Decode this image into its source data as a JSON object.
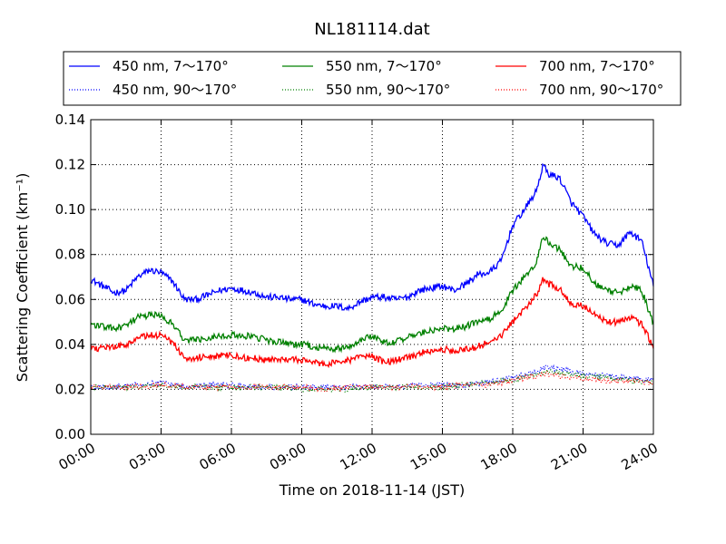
{
  "chart_data": {
    "type": "line",
    "title": "NL181114.dat",
    "xlabel": "Time on 2018-11-14 (JST)",
    "ylabel": "Scattering Coefficient (km⁻¹)",
    "xlim": [
      0,
      24
    ],
    "ylim": [
      0.0,
      0.14
    ],
    "xticks": [
      0,
      3,
      6,
      9,
      12,
      15,
      18,
      21,
      24
    ],
    "xtick_labels": [
      "00:00",
      "03:00",
      "06:00",
      "09:00",
      "12:00",
      "15:00",
      "18:00",
      "21:00",
      "24:00"
    ],
    "yticks": [
      0.0,
      0.02,
      0.04,
      0.06,
      0.08,
      0.1,
      0.12,
      0.14
    ],
    "ytick_labels": [
      "0.00",
      "0.02",
      "0.04",
      "0.06",
      "0.08",
      "0.10",
      "0.12",
      "0.14"
    ],
    "grid": true,
    "legend_position": "top",
    "series": [
      {
        "name": "450 nm, 7～170°",
        "color": "#0000ff",
        "style": "solid",
        "x": [
          0,
          0.5,
          1,
          1.5,
          2,
          2.5,
          3,
          3.5,
          4,
          4.5,
          5,
          5.5,
          6,
          6.5,
          7,
          7.5,
          8,
          8.5,
          9,
          9.5,
          10,
          10.5,
          11,
          11.5,
          12,
          12.5,
          13,
          13.5,
          14,
          14.5,
          15,
          15.5,
          16,
          16.5,
          17,
          17.5,
          18,
          18.5,
          19,
          19.3,
          19.5,
          20,
          20.5,
          21,
          21.5,
          22,
          22.5,
          23,
          23.5,
          24
        ],
        "y": [
          0.069,
          0.066,
          0.063,
          0.064,
          0.07,
          0.073,
          0.072,
          0.068,
          0.06,
          0.06,
          0.062,
          0.064,
          0.065,
          0.064,
          0.063,
          0.061,
          0.061,
          0.06,
          0.06,
          0.058,
          0.057,
          0.057,
          0.056,
          0.059,
          0.061,
          0.061,
          0.06,
          0.061,
          0.064,
          0.065,
          0.066,
          0.064,
          0.067,
          0.071,
          0.072,
          0.077,
          0.093,
          0.1,
          0.108,
          0.12,
          0.116,
          0.114,
          0.103,
          0.097,
          0.089,
          0.085,
          0.084,
          0.09,
          0.086,
          0.066
        ]
      },
      {
        "name": "550 nm, 7～170°",
        "color": "#008000",
        "style": "solid",
        "x": [
          0,
          0.5,
          1,
          1.5,
          2,
          2.5,
          3,
          3.5,
          4,
          4.5,
          5,
          5.5,
          6,
          6.5,
          7,
          7.5,
          8,
          8.5,
          9,
          9.5,
          10,
          10.5,
          11,
          11.5,
          12,
          12.5,
          13,
          13.5,
          14,
          14.5,
          15,
          15.5,
          16,
          16.5,
          17,
          17.5,
          18,
          18.5,
          19,
          19.3,
          19.5,
          20,
          20.5,
          21,
          21.5,
          22,
          22.5,
          23,
          23.5,
          24
        ],
        "y": [
          0.049,
          0.048,
          0.047,
          0.048,
          0.052,
          0.053,
          0.053,
          0.049,
          0.042,
          0.042,
          0.043,
          0.044,
          0.044,
          0.044,
          0.043,
          0.042,
          0.041,
          0.04,
          0.04,
          0.039,
          0.038,
          0.038,
          0.039,
          0.042,
          0.044,
          0.041,
          0.041,
          0.043,
          0.045,
          0.046,
          0.047,
          0.047,
          0.048,
          0.05,
          0.051,
          0.055,
          0.064,
          0.07,
          0.076,
          0.088,
          0.086,
          0.082,
          0.075,
          0.074,
          0.067,
          0.064,
          0.063,
          0.066,
          0.064,
          0.049
        ]
      },
      {
        "name": "700 nm, 7～170°",
        "color": "#ff0000",
        "style": "solid",
        "x": [
          0,
          0.5,
          1,
          1.5,
          2,
          2.5,
          3,
          3.5,
          4,
          4.5,
          5,
          5.5,
          6,
          6.5,
          7,
          7.5,
          8,
          8.5,
          9,
          9.5,
          10,
          10.5,
          11,
          11.5,
          12,
          12.5,
          13,
          13.5,
          14,
          14.5,
          15,
          15.5,
          16,
          16.5,
          17,
          17.5,
          18,
          18.5,
          19,
          19.3,
          19.5,
          20,
          20.5,
          21,
          21.5,
          22,
          22.5,
          23,
          23.5,
          24
        ],
        "y": [
          0.039,
          0.038,
          0.039,
          0.04,
          0.043,
          0.044,
          0.044,
          0.041,
          0.034,
          0.034,
          0.035,
          0.035,
          0.035,
          0.034,
          0.034,
          0.033,
          0.033,
          0.033,
          0.033,
          0.032,
          0.031,
          0.032,
          0.033,
          0.034,
          0.035,
          0.032,
          0.033,
          0.034,
          0.036,
          0.037,
          0.038,
          0.037,
          0.038,
          0.039,
          0.041,
          0.044,
          0.05,
          0.056,
          0.062,
          0.069,
          0.067,
          0.065,
          0.058,
          0.057,
          0.053,
          0.05,
          0.05,
          0.052,
          0.049,
          0.039
        ]
      },
      {
        "name": "450 nm, 90～170°",
        "color": "#0000ff",
        "style": "dotted",
        "x": [
          0,
          1,
          2,
          3,
          4,
          5,
          6,
          7,
          8,
          9,
          10,
          11,
          12,
          13,
          14,
          15,
          16,
          17,
          18,
          19,
          19.5,
          20,
          21,
          22,
          23,
          24
        ],
        "y": [
          0.021,
          0.021,
          0.022,
          0.023,
          0.021,
          0.022,
          0.022,
          0.021,
          0.021,
          0.021,
          0.021,
          0.021,
          0.021,
          0.021,
          0.022,
          0.022,
          0.022,
          0.023,
          0.025,
          0.028,
          0.03,
          0.029,
          0.027,
          0.026,
          0.025,
          0.024
        ]
      },
      {
        "name": "550 nm, 90～170°",
        "color": "#008000",
        "style": "dotted",
        "x": [
          0,
          1,
          2,
          3,
          4,
          5,
          6,
          7,
          8,
          9,
          10,
          11,
          12,
          13,
          14,
          15,
          16,
          17,
          18,
          19,
          19.5,
          20,
          21,
          22,
          23,
          24
        ],
        "y": [
          0.021,
          0.021,
          0.021,
          0.022,
          0.021,
          0.021,
          0.021,
          0.021,
          0.021,
          0.02,
          0.02,
          0.02,
          0.021,
          0.021,
          0.021,
          0.021,
          0.022,
          0.023,
          0.024,
          0.027,
          0.028,
          0.027,
          0.026,
          0.025,
          0.024,
          0.023
        ]
      },
      {
        "name": "700 nm, 90～170°",
        "color": "#ff0000",
        "style": "dotted",
        "x": [
          0,
          1,
          2,
          3,
          4,
          5,
          6,
          7,
          8,
          9,
          10,
          11,
          12,
          13,
          14,
          15,
          16,
          17,
          18,
          19,
          19.5,
          20,
          21,
          22,
          23,
          24
        ],
        "y": [
          0.021,
          0.021,
          0.021,
          0.022,
          0.021,
          0.021,
          0.021,
          0.021,
          0.021,
          0.021,
          0.02,
          0.021,
          0.021,
          0.021,
          0.021,
          0.021,
          0.022,
          0.022,
          0.024,
          0.026,
          0.027,
          0.026,
          0.025,
          0.024,
          0.024,
          0.023
        ]
      }
    ]
  }
}
